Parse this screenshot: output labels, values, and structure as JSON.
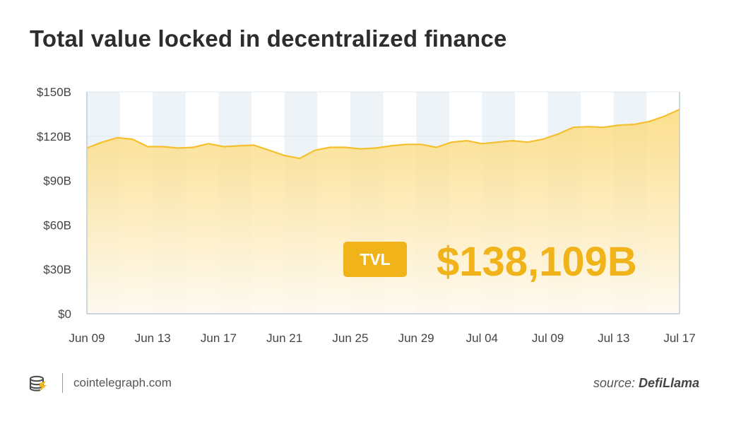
{
  "title": "Total value locked in decentralized finance",
  "footer": {
    "site": "cointelegraph.com",
    "source_prefix": "source:",
    "source_name": "DefiLlama"
  },
  "colors": {
    "line": "#f5c02e",
    "fill_top": "#fbd97a",
    "fill_bottom": "#fffaf0",
    "badge": "#f0b41a",
    "band": "#edf3f6",
    "axis_text": "#444444",
    "border": "#b9cdd6"
  },
  "chart_data": {
    "type": "area",
    "ylim": [
      0,
      150
    ],
    "y_ticks": [
      0,
      30,
      60,
      90,
      120,
      150
    ],
    "y_tick_labels": [
      "$0",
      "$30B",
      "$60B",
      "$90B",
      "$120B",
      "$150B"
    ],
    "x_tick_labels": [
      "Jun 09",
      "Jun 13",
      "Jun 17",
      "Jun 21",
      "Jun 25",
      "Jun 29",
      "Jul 04",
      "Jul 09",
      "Jul 13",
      "Jul 17"
    ],
    "grid": true,
    "annotation": {
      "badge": "TVL",
      "value": "$138,109B"
    },
    "series": [
      {
        "values": [
          112,
          116,
          119,
          118,
          113,
          113,
          112,
          112.5,
          115,
          113,
          113.5,
          114,
          110.5,
          107,
          105,
          110.5,
          112.5,
          112.5,
          111.5,
          112,
          113.5,
          114.5,
          114.5,
          112.5,
          116,
          117,
          115,
          116,
          117,
          116,
          118,
          121.5,
          126,
          126.5,
          126,
          127.5,
          128,
          130,
          133.5,
          138.1
        ]
      }
    ]
  }
}
